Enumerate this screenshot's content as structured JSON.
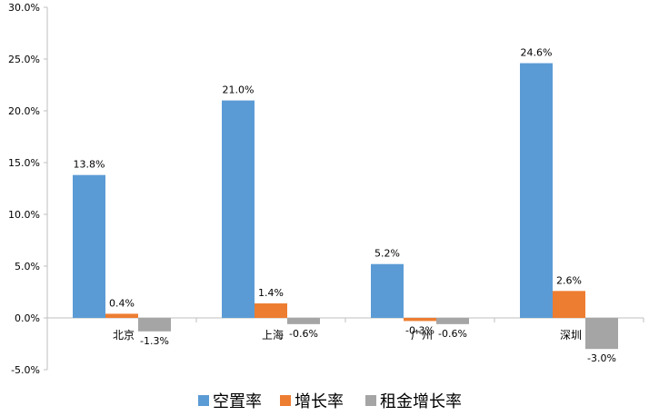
{
  "chart_data": {
    "type": "bar",
    "categories": [
      "北京",
      "上海",
      "广州",
      "深圳"
    ],
    "series": [
      {
        "name": "空置率",
        "values": [
          13.8,
          21.0,
          5.2,
          24.6
        ],
        "labels": [
          "13.8%",
          "21.0%",
          "5.2%",
          "24.6%"
        ],
        "color": "#5B9BD5"
      },
      {
        "name": "增长率",
        "values": [
          0.4,
          1.4,
          -0.3,
          2.6
        ],
        "labels": [
          "0.4%",
          "1.4%",
          "-0.3%",
          "2.6%"
        ],
        "color": "#ED7D31"
      },
      {
        "name": "租金增长率",
        "values": [
          -1.3,
          -0.6,
          -0.6,
          -3.0
        ],
        "labels": [
          "-1.3%",
          "-0.6%",
          "-0.6%",
          "-3.0%"
        ],
        "color": "#A5A5A5"
      }
    ],
    "ylim": [
      -5,
      30
    ],
    "yticks": [
      30,
      25,
      20,
      15,
      10,
      5,
      0,
      -5
    ],
    "ytick_labels": [
      "30.0%",
      "25.0%",
      "20.0%",
      "15.0%",
      "10.0%",
      "5.0%",
      "0.0%",
      "-5.0%"
    ],
    "grid": false,
    "legend": "bottom"
  }
}
